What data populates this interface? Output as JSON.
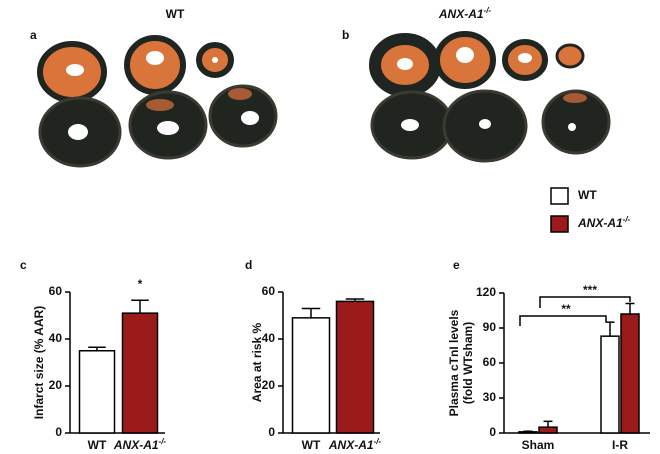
{
  "images": [
    {
      "panel": "a",
      "title": "WT"
    },
    {
      "panel": "b",
      "title": {
        "label": "ANX-A1",
        "sup": "-/-"
      }
    }
  ],
  "chart_data": [
    {
      "type": "bar",
      "panel": "c",
      "ylabel": [
        "Infarct size (% AAR)"
      ],
      "categories": [
        "WT",
        {
          "label": "ANX-A1",
          "sup": "-/-"
        }
      ],
      "values": [
        35,
        51
      ],
      "errors": [
        1.5,
        5.5
      ],
      "colors": [
        "#ffffff",
        "#9b1b1b"
      ],
      "ylim": [
        0,
        60
      ],
      "yticks": [
        0,
        20,
        40,
        60
      ],
      "annotations": [
        "*"
      ]
    },
    {
      "type": "bar",
      "panel": "d",
      "ylabel": [
        "Area at risk %"
      ],
      "categories": [
        "WT",
        {
          "label": "ANX-A1",
          "sup": "-/-"
        }
      ],
      "values": [
        49,
        56
      ],
      "errors": [
        4,
        1
      ],
      "colors": [
        "#ffffff",
        "#9b1b1b"
      ],
      "ylim": [
        0,
        60
      ],
      "yticks": [
        0,
        20,
        40,
        60
      ]
    },
    {
      "type": "bar",
      "panel": "e",
      "ylabel": [
        "Plasma cTnI levels",
        "(fold WTsham)"
      ],
      "categories": [
        "Sham",
        "I-R"
      ],
      "series": [
        {
          "name": "WT",
          "color": "#ffffff",
          "values": [
            1,
            83
          ],
          "errors": [
            0.5,
            12
          ]
        },
        {
          "name": {
            "label": "ANX-A1",
            "sup": "-/-"
          },
          "color": "#9b1b1b",
          "values": [
            5,
            102
          ],
          "errors": [
            5,
            9
          ]
        }
      ],
      "ylim": [
        0,
        120
      ],
      "yticks": [
        0,
        30,
        60,
        90,
        120
      ],
      "annotations": [
        "**",
        "***"
      ]
    }
  ]
}
